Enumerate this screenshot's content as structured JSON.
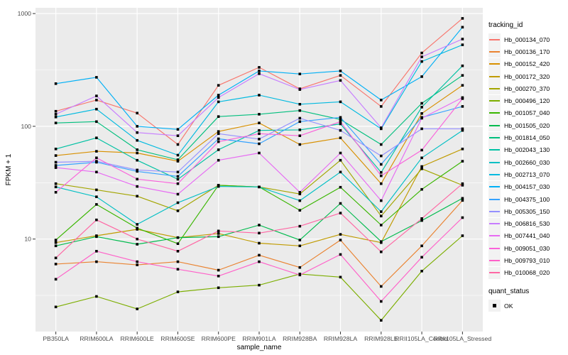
{
  "figure": {
    "background": "#ffffff",
    "panel_background": "#EBEBEB",
    "grid_color": "#FFFFFF",
    "tick_label_color": "#4D4D4D",
    "point_color": "#000000"
  },
  "x_axis": {
    "label": "sample_name"
  },
  "y_axis": {
    "label": "FPKM + 1",
    "tick_labels": [
      "10",
      "100",
      "1000"
    ]
  },
  "legend": {
    "title": "tracking_id"
  },
  "legend2": {
    "title": "quant_status",
    "items": [
      {
        "label": "OK"
      }
    ]
  },
  "chart_data": {
    "type": "line",
    "title": "",
    "xlabel": "sample_name",
    "ylabel": "FPKM + 1",
    "y_scale": "log10",
    "y_tick_values": [
      10,
      100,
      1000
    ],
    "y_minor_tick_values": [
      3.1623,
      31.623,
      316.23
    ],
    "ylim": [
      1.5,
      1120
    ],
    "grid": true,
    "legend_position": "right",
    "point_marker": "small black square (quant_status = OK)",
    "categories": [
      "PB350LA",
      "RRIM600LA",
      "RRIM600LE",
      "RRIM600SE",
      "RRIM600PE",
      "RRIM901LA",
      "RRIM928BA",
      "RRIM928LA",
      "RRIM928LE",
      "RRII105LA_Control",
      "RRII105LA_Stressed"
    ],
    "series": [
      {
        "name": "Hb_000134_070",
        "color": "#F8766D",
        "values": [
          136,
          171,
          131,
          69,
          231,
          333,
          215,
          283,
          150,
          447,
          906
        ]
      },
      {
        "name": "Hb_000136_170",
        "color": "#EA8331",
        "values": [
          6.0,
          6.3,
          5.9,
          6.3,
          5.3,
          7.2,
          5.6,
          9.8,
          3.8,
          8.7,
          22
        ]
      },
      {
        "name": "Hb_000152_420",
        "color": "#D89000",
        "values": [
          55,
          60,
          58,
          49,
          90,
          107,
          69,
          79,
          31,
          130,
          231
        ]
      },
      {
        "name": "Hb_000172_320",
        "color": "#C09B00",
        "values": [
          9.3,
          10.7,
          12.2,
          10.3,
          11.2,
          9.2,
          8.7,
          11,
          9.3,
          44,
          63
        ]
      },
      {
        "name": "Hb_000270_370",
        "color": "#A3A500",
        "values": [
          31,
          27.3,
          24,
          17.8,
          30,
          29,
          25.1,
          50,
          16,
          42,
          30
        ]
      },
      {
        "name": "Hb_000496_120",
        "color": "#7CAE00",
        "values": [
          2.5,
          3.1,
          2.4,
          3.4,
          3.7,
          3.9,
          4.9,
          4.6,
          1.9,
          5.2,
          10.7
        ]
      },
      {
        "name": "Hb_001057_040",
        "color": "#39B600",
        "values": [
          9.8,
          20.3,
          12.5,
          9.1,
          30,
          29,
          18,
          28.8,
          13.3,
          27.6,
          49
        ]
      },
      {
        "name": "Hb_001505_020",
        "color": "#00BB4E",
        "values": [
          8.7,
          10.5,
          9.0,
          10.3,
          10.5,
          13.3,
          9.8,
          20.7,
          9.5,
          14.6,
          23
        ]
      },
      {
        "name": "Hb_001814_050",
        "color": "#00BF7D",
        "values": [
          107,
          110,
          62,
          50.5,
          122,
          128,
          138,
          115,
          69,
          160,
          283
        ]
      },
      {
        "name": "Hb_002043_130",
        "color": "#00C1A3",
        "values": [
          63,
          79,
          50,
          33.9,
          62,
          92,
          93,
          105,
          39,
          148,
          344
        ]
      },
      {
        "name": "Hb_002660_030",
        "color": "#00BFC4",
        "values": [
          29,
          23.7,
          13.5,
          21,
          29.3,
          29,
          21.9,
          39.3,
          17.5,
          52.5,
          92
        ]
      },
      {
        "name": "Hb_002713_070",
        "color": "#00BAE0",
        "values": [
          121,
          142,
          75,
          55.5,
          165,
          189,
          157,
          165,
          95,
          376,
          528
        ]
      },
      {
        "name": "Hb_004157_030",
        "color": "#00B0F6",
        "values": [
          239,
          272,
          100,
          94,
          189,
          310,
          291,
          310,
          171,
          276,
          757
        ]
      },
      {
        "name": "Hb_004375_100",
        "color": "#35A2FF",
        "values": [
          45,
          48,
          39.8,
          36,
          77.5,
          70,
          110,
          120,
          46,
          120,
          150
        ]
      },
      {
        "name": "Hb_005305_150",
        "color": "#9590FF",
        "values": [
          48,
          49,
          41,
          39.3,
          86,
          77,
          118,
          92,
          54.6,
          95,
          95
        ]
      },
      {
        "name": "Hb_006816_530",
        "color": "#C77CFF",
        "values": [
          128,
          186,
          88,
          82.5,
          180,
          293,
          212,
          255,
          97,
          413,
          594
        ]
      },
      {
        "name": "Hb_007441_040",
        "color": "#E76BF3",
        "values": [
          43,
          39.3,
          29.3,
          25,
          50,
          58,
          26,
          58,
          21.9,
          118,
          180
        ]
      },
      {
        "name": "Hb_009051_030",
        "color": "#FA62DB",
        "values": [
          26,
          52.5,
          34,
          31,
          73,
          86,
          82.5,
          110,
          36.4,
          61.5,
          176
        ]
      },
      {
        "name": "Hb_009793_010",
        "color": "#FF61C9",
        "values": [
          4.4,
          7.8,
          6.3,
          5.4,
          4.7,
          6.3,
          4.8,
          7.3,
          2.8,
          6.9,
          15.5
        ]
      },
      {
        "name": "Hb_010068_020",
        "color": "#FF67A4",
        "values": [
          6.8,
          14.8,
          10,
          7.8,
          11.8,
          11.3,
          13,
          17,
          7.7,
          15.2,
          31
        ]
      }
    ]
  }
}
